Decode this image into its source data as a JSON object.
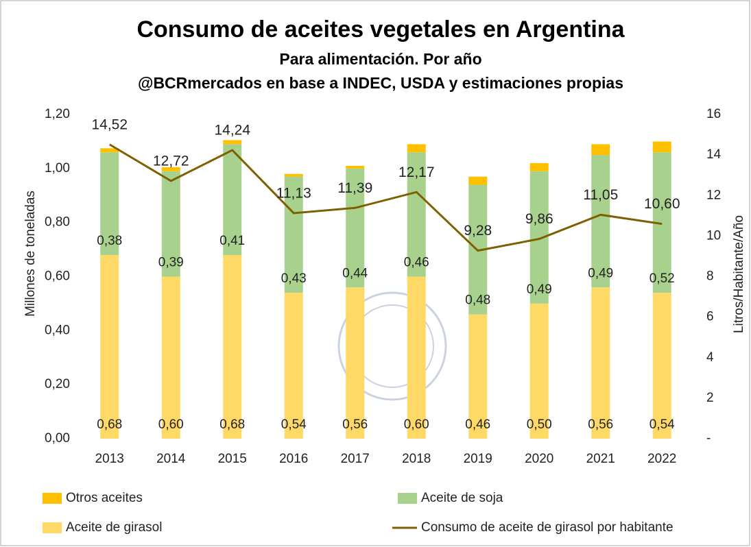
{
  "chart_data": {
    "type": "bar",
    "title": "Consumo de aceites vegetales en Argentina",
    "subtitle": "Para alimentación. Por año",
    "source": "@BCRmercados en base a INDEC, USDA y estimaciones propias",
    "ylabel": "Millones de toneladas",
    "y2label": "Litros/Habitante/Año",
    "stacked": true,
    "categories": [
      "2013",
      "2014",
      "2015",
      "2016",
      "2017",
      "2018",
      "2019",
      "2020",
      "2021",
      "2022"
    ],
    "series": [
      {
        "name": "Aceite de girasol",
        "color": "#ffd966",
        "values": [
          0.68,
          0.6,
          0.68,
          0.54,
          0.56,
          0.6,
          0.46,
          0.5,
          0.56,
          0.54
        ],
        "value_labels": [
          "0,68",
          "0,60",
          "0,68",
          "0,54",
          "0,56",
          "0,60",
          "0,46",
          "0,50",
          "0,56",
          "0,54"
        ]
      },
      {
        "name": "Aceite de soja",
        "color": "#a9d18e",
        "values": [
          0.38,
          0.39,
          0.41,
          0.43,
          0.44,
          0.46,
          0.48,
          0.49,
          0.49,
          0.52
        ],
        "value_labels": [
          "0,38",
          "0,39",
          "0,41",
          "0,43",
          "0,44",
          "0,46",
          "0,48",
          "0,49",
          "0,49",
          "0,52"
        ]
      },
      {
        "name": "Otros aceites",
        "color": "#ffc000",
        "values": [
          0.015,
          0.015,
          0.015,
          0.01,
          0.01,
          0.03,
          0.03,
          0.03,
          0.04,
          0.04
        ]
      },
      {
        "name": "Consumo de aceite de girasol por habitante",
        "color": "#7f6000",
        "type": "line",
        "axis": "y2",
        "values": [
          14.52,
          12.72,
          14.24,
          11.13,
          11.39,
          12.17,
          9.28,
          9.86,
          11.05,
          10.6
        ],
        "value_labels": [
          "14,52",
          "12,72",
          "14,24",
          "11,13",
          "11,39",
          "12,17",
          "9,28",
          "9,86",
          "11,05",
          "10,60"
        ]
      }
    ],
    "ylim": [
      0,
      1.2
    ],
    "yticks": [
      {
        "value": 0,
        "label": "0,00"
      },
      {
        "value": 0.2,
        "label": "0,20"
      },
      {
        "value": 0.4,
        "label": "0,40"
      },
      {
        "value": 0.6,
        "label": "0,60"
      },
      {
        "value": 0.8,
        "label": "0,80"
      },
      {
        "value": 1.0,
        "label": "1,00"
      },
      {
        "value": 1.2,
        "label": "1,20"
      }
    ],
    "y2lim": [
      0,
      16
    ],
    "y2ticks": [
      {
        "value": 0,
        "label": "-"
      },
      2,
      4,
      6,
      8,
      10,
      12,
      14,
      16
    ],
    "grid": false,
    "legend": "bottom"
  }
}
